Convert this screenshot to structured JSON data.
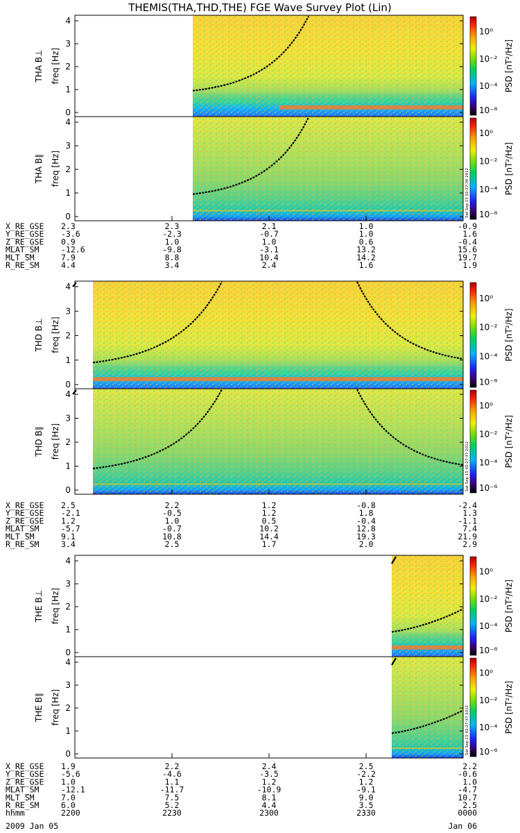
{
  "title": "THEMIS(THA,THD,THE) FGE Wave Survey Plot (Lin)",
  "colorbar": {
    "label": "PSD [nT²/Hz]",
    "ticks": [
      "10⁰",
      "10⁻²",
      "10⁻⁴",
      "10⁻⁶"
    ]
  },
  "chart_data": {
    "type": "heatmap",
    "y_axis": {
      "label": "freq [Hz]",
      "ticks": [
        "0",
        "1",
        "2",
        "3",
        "4"
      ],
      "range": [
        0,
        4
      ]
    },
    "panels": [
      {
        "probe": "THA",
        "component": "B⊥",
        "label": "THA B⊥"
      },
      {
        "probe": "THA",
        "component": "B∥",
        "label": "THA B∥"
      },
      {
        "probe": "THD",
        "component": "B⊥",
        "label": "THD B⊥"
      },
      {
        "probe": "THD",
        "component": "B∥",
        "label": "THD B∥"
      },
      {
        "probe": "THE",
        "component": "B⊥",
        "label": "THE B⊥"
      },
      {
        "probe": "THE",
        "component": "B∥",
        "label": "THE B∥"
      }
    ],
    "stamps": [
      "Sat Sep 15 02:27:36 2012",
      "Sat Sep 15 02:27:37 2012",
      "Sat Sep 15 02:27:37 2012"
    ],
    "ephemeris": [
      {
        "probe": "THA",
        "rows": [
          {
            "label": "X_RE_GSE",
            "values": [
              "2.3",
              "2.3",
              "2.1",
              "1.0",
              "-0.9"
            ]
          },
          {
            "label": "Y_RE_GSE",
            "values": [
              "-3.6",
              "-2.3",
              "-0.7",
              "1.0",
              "1.6"
            ]
          },
          {
            "label": "Z_RE_GSE",
            "values": [
              "0.9",
              "1.0",
              "1.0",
              "0.6",
              "-0.4"
            ]
          },
          {
            "label": "MLAT_SM",
            "values": [
              "-12.6",
              "-9.8",
              "-3.1",
              "13.2",
              "15.6"
            ]
          },
          {
            "label": "MLT_SM",
            "values": [
              "7.9",
              "8.8",
              "10.4",
              "14.2",
              "19.7"
            ]
          },
          {
            "label": "R_RE_SM",
            "values": [
              "4.4",
              "3.4",
              "2.4",
              "1.6",
              "1.9"
            ]
          }
        ]
      },
      {
        "probe": "THD",
        "rows": [
          {
            "label": "X_RE_GSE",
            "values": [
              "2.5",
              "2.2",
              "1.2",
              "-0.8",
              "-2.4"
            ]
          },
          {
            "label": "Y_RE_GSE",
            "values": [
              "-2.1",
              "-0.5",
              "1.2",
              "1.8",
              "1.3"
            ]
          },
          {
            "label": "Z_RE_GSE",
            "values": [
              "1.2",
              "1.0",
              "0.5",
              "-0.4",
              "-1.1"
            ]
          },
          {
            "label": "MLAT_SM",
            "values": [
              "-5.7",
              "-0.7",
              "10.2",
              "12.8",
              "7.4"
            ]
          },
          {
            "label": "MLT_SM",
            "values": [
              "9.1",
              "10.8",
              "14.4",
              "19.3",
              "21.9"
            ]
          },
          {
            "label": "R_RE_SM",
            "values": [
              "3.4",
              "2.5",
              "1.7",
              "2.0",
              "2.9"
            ]
          }
        ]
      },
      {
        "probe": "THE",
        "rows": [
          {
            "label": "X_RE_GSE",
            "values": [
              "1.9",
              "2.2",
              "2.4",
              "2.5",
              "2.2"
            ]
          },
          {
            "label": "Y_RE_GSE",
            "values": [
              "-5.6",
              "-4.6",
              "-3.5",
              "-2.2",
              "-0.6"
            ]
          },
          {
            "label": "Z_RE_GSE",
            "values": [
              "1.0",
              "1.1",
              "1.2",
              "1.2",
              "1.0"
            ]
          },
          {
            "label": "MLAT_SM",
            "values": [
              "-12.1",
              "-11.7",
              "-10.9",
              "-9.1",
              "-4.7"
            ]
          },
          {
            "label": "MLT_SM",
            "values": [
              "7.0",
              "7.5",
              "8.1",
              "9.0",
              "10.7"
            ]
          },
          {
            "label": "R_RE_SM",
            "values": [
              "6.0",
              "5.2",
              "4.4",
              "3.5",
              "2.5"
            ]
          },
          {
            "label": "hhmm",
            "values": [
              "2200",
              "2230",
              "2300",
              "2330",
              "0000"
            ]
          }
        ]
      }
    ],
    "x_axis": {
      "label": "hhmm",
      "ticks": [
        "2200",
        "2230",
        "2300",
        "2330",
        "0000"
      ],
      "date_start": "2009 Jan 05",
      "date_end": "Jan 06"
    }
  }
}
